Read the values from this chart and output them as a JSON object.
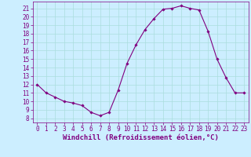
{
  "x": [
    0,
    1,
    2,
    3,
    4,
    5,
    6,
    7,
    8,
    9,
    10,
    11,
    12,
    13,
    14,
    15,
    16,
    17,
    18,
    19,
    20,
    21,
    22,
    23
  ],
  "y": [
    12.0,
    11.0,
    10.5,
    10.0,
    9.8,
    9.5,
    8.7,
    8.3,
    8.7,
    11.3,
    14.5,
    16.7,
    18.5,
    19.8,
    20.9,
    21.0,
    21.3,
    21.0,
    20.8,
    18.3,
    15.0,
    12.8,
    11.0,
    11.0
  ],
  "line_color": "#800080",
  "marker_color": "#800080",
  "bg_color": "#cceeff",
  "grid_color": "#aadddd",
  "xlabel": "Windchill (Refroidissement éolien,°C)",
  "xlabel_color": "#800080",
  "xlim": [
    -0.5,
    23.5
  ],
  "ylim": [
    7.5,
    21.8
  ],
  "yticks": [
    8,
    9,
    10,
    11,
    12,
    13,
    14,
    15,
    16,
    17,
    18,
    19,
    20,
    21
  ],
  "xticks": [
    0,
    1,
    2,
    3,
    4,
    5,
    6,
    7,
    8,
    9,
    10,
    11,
    12,
    13,
    14,
    15,
    16,
    17,
    18,
    19,
    20,
    21,
    22,
    23
  ],
  "tick_color": "#800080",
  "tick_fontsize": 5.5,
  "xlabel_fontsize": 6.5
}
